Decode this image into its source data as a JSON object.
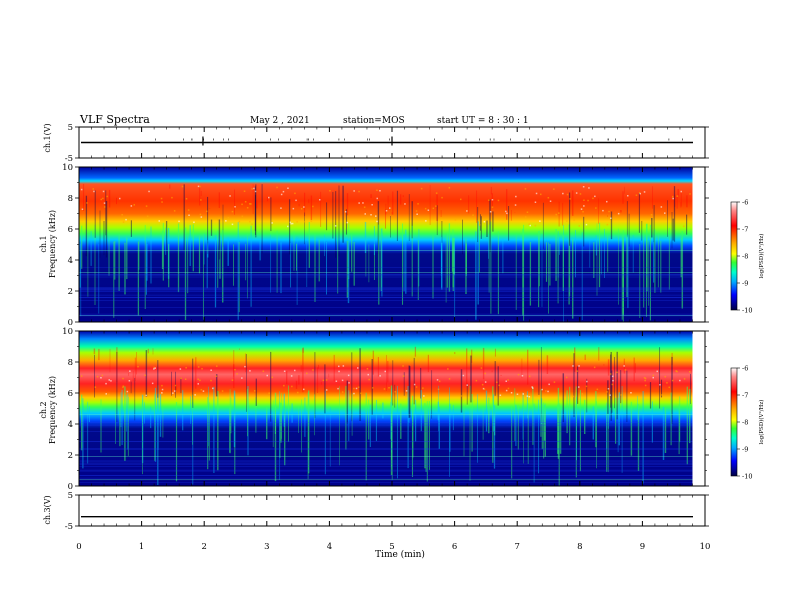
{
  "header": {
    "title": "VLF Spectra",
    "date": "May 2  , 2021",
    "station": "station=MOS",
    "start": "start  UT  =   8  : 30 : 1"
  },
  "colors": {
    "scale": [
      "#000088",
      "#0000ff",
      "#0066ff",
      "#00ccff",
      "#00ffaa",
      "#33ff33",
      "#aaff00",
      "#ffff00",
      "#ffaa00",
      "#ff3300",
      "#ff0000",
      "#ffcccc"
    ]
  },
  "chart_data": [
    {
      "type": "line",
      "name": "ch1-waveform",
      "ylabel": "ch.1(V)",
      "y_ticks": [
        "5",
        "-5"
      ],
      "ylim": [
        -5,
        5
      ],
      "xlim": [
        0,
        10
      ],
      "baseline_value": 0
    },
    {
      "type": "heatmap",
      "name": "ch1-spectrogram",
      "ylabel": "ch.1\nFrequency  (kHz)",
      "ylabel_lines": [
        "ch.1",
        "Frequency  (kHz)"
      ],
      "y_ticks": [
        "0",
        "2",
        "4",
        "6",
        "8",
        "10"
      ],
      "ylim": [
        0,
        10
      ],
      "xlim": [
        0,
        10
      ],
      "data_end_min": 9.8,
      "colorbar": {
        "label": "log(PSD)(V²/Hz)",
        "ticks": [
          "-6",
          "-7",
          "-8",
          "-9",
          "-10"
        ],
        "range": [
          -10,
          -6
        ]
      },
      "bands": [
        {
          "khz": [
            0,
            4.5
          ],
          "log_psd": -9.7
        },
        {
          "khz": [
            4.5,
            5.3
          ],
          "log_psd": -9.0
        },
        {
          "khz": [
            5.3,
            6.0
          ],
          "log_psd": -8.0
        },
        {
          "khz": [
            6.0,
            7.0
          ],
          "log_psd": -7.2
        },
        {
          "khz": [
            7.0,
            9.0
          ],
          "log_psd": -6.8
        },
        {
          "khz": [
            9.0,
            9.3
          ],
          "log_psd": -8.5
        },
        {
          "khz": [
            9.3,
            10
          ],
          "log_psd": -9.3
        }
      ],
      "lines_khz": [
        0.4,
        3.2,
        4.6
      ]
    },
    {
      "type": "heatmap",
      "name": "ch2-spectrogram",
      "ylabel": "ch.2\nFrequency  (kHz)",
      "ylabel_lines": [
        "ch.2",
        "Frequency  (kHz)"
      ],
      "y_ticks": [
        "0",
        "2",
        "4",
        "6",
        "8",
        "10"
      ],
      "ylim": [
        0,
        10
      ],
      "xlim": [
        0,
        10
      ],
      "data_end_min": 9.8,
      "colorbar": {
        "label": "log(PSD)(V²/Hz)",
        "ticks": [
          "-6",
          "-7",
          "-8",
          "-9",
          "-10"
        ],
        "range": [
          -10,
          -6
        ]
      },
      "bands": [
        {
          "khz": [
            0,
            3.8
          ],
          "log_psd": -9.7
        },
        {
          "khz": [
            3.8,
            4.6
          ],
          "log_psd": -9.0
        },
        {
          "khz": [
            4.6,
            5.4
          ],
          "log_psd": -8.0
        },
        {
          "khz": [
            5.4,
            6.0
          ],
          "log_psd": -7.2
        },
        {
          "khz": [
            6.0,
            7.7
          ],
          "log_psd": -6.5
        },
        {
          "khz": [
            7.7,
            8.6
          ],
          "log_psd": -7.4
        },
        {
          "khz": [
            8.6,
            9.6
          ],
          "log_psd": -8.3
        },
        {
          "khz": [
            9.6,
            10
          ],
          "log_psd": -9.2
        }
      ],
      "lines_khz": [
        0.4,
        1.9,
        4.6
      ]
    },
    {
      "type": "line",
      "name": "ch3-waveform",
      "ylabel": "ch.3(V)",
      "y_ticks": [
        "5",
        "-5"
      ],
      "ylim": [
        -5,
        5
      ],
      "xlim": [
        0,
        10
      ],
      "baseline_value": -2
    }
  ],
  "xaxis": {
    "label": "Time  (min)",
    "ticks": [
      "0",
      "1",
      "2",
      "3",
      "4",
      "5",
      "6",
      "7",
      "8",
      "9",
      "10"
    ],
    "range": [
      0,
      10
    ]
  }
}
